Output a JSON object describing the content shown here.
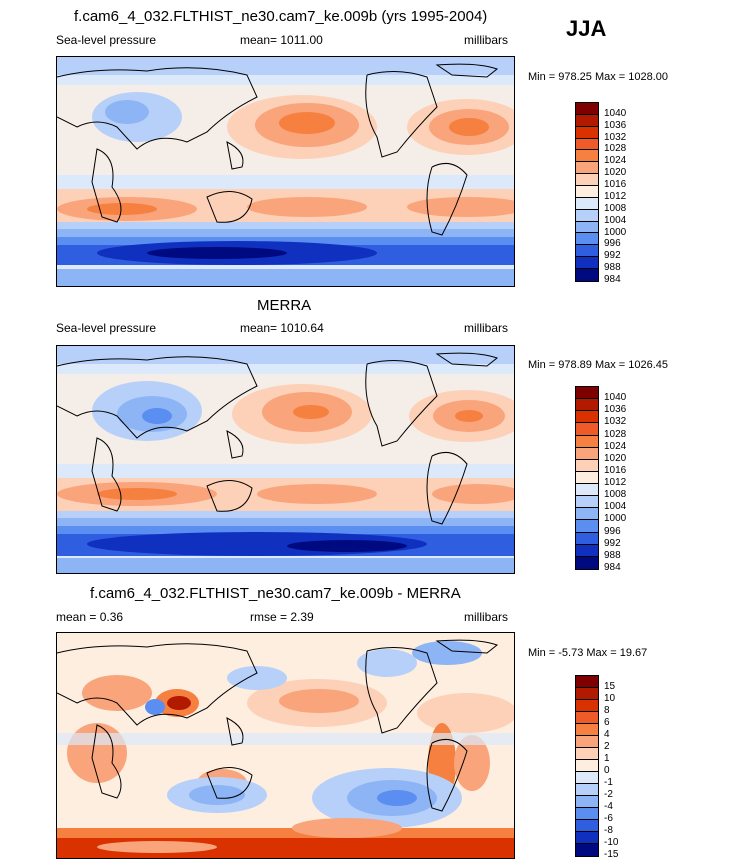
{
  "season": "JJA",
  "panels": [
    {
      "title": "f.cam6_4_032.FLTHIST_ne30.cam7_ke.009b (yrs 1995-2004)",
      "left": "Sea-level pressure",
      "center": "mean= 1011.00",
      "right": "millibars",
      "minmax": "Min = 978.25 Max = 1028.00",
      "levels": [
        "1040",
        "1036",
        "1032",
        "1028",
        "1024",
        "1020",
        "1016",
        "1012",
        "1008",
        "1004",
        "1000",
        "996",
        "992",
        "988",
        "984"
      ]
    },
    {
      "title": "MERRA",
      "left": "Sea-level pressure",
      "center": "mean= 1010.64",
      "right": "millibars",
      "minmax": "Min = 978.89 Max = 1026.45",
      "levels": [
        "1040",
        "1036",
        "1032",
        "1028",
        "1024",
        "1020",
        "1016",
        "1012",
        "1008",
        "1004",
        "1000",
        "996",
        "992",
        "988",
        "984"
      ]
    },
    {
      "title": "f.cam6_4_032.FLTHIST_ne30.cam7_ke.009b - MERRA",
      "left": "mean =   0.36",
      "center": "rmse =   2.39",
      "right": "millibars",
      "minmax": "Min =  -5.73 Max =  19.67",
      "levels": [
        "15",
        "10",
        "8",
        "6",
        "4",
        "2",
        "1",
        "0",
        "-1",
        "-2",
        "-4",
        "-6",
        "-8",
        "-10",
        "-15"
      ]
    }
  ],
  "colors": {
    "abs_scale": [
      "#7f0000",
      "#b21a00",
      "#d93200",
      "#ee5a28",
      "#f5803f",
      "#f9a47b",
      "#fcd1b8",
      "#fdeee0",
      "#dce9fb",
      "#b7d0f9",
      "#8db4f5",
      "#5a8ef0",
      "#2f5fe0",
      "#1030c0",
      "#000a80"
    ],
    "diff_scale": [
      "#7f0000",
      "#b21a00",
      "#d93200",
      "#ee5a28",
      "#f5803f",
      "#f9a47b",
      "#fcd1b8",
      "#fdeee0",
      "#dce9fb",
      "#b7d0f9",
      "#8db4f5",
      "#5a8ef0",
      "#2f5fe0",
      "#1030c0",
      "#000a80"
    ]
  }
}
